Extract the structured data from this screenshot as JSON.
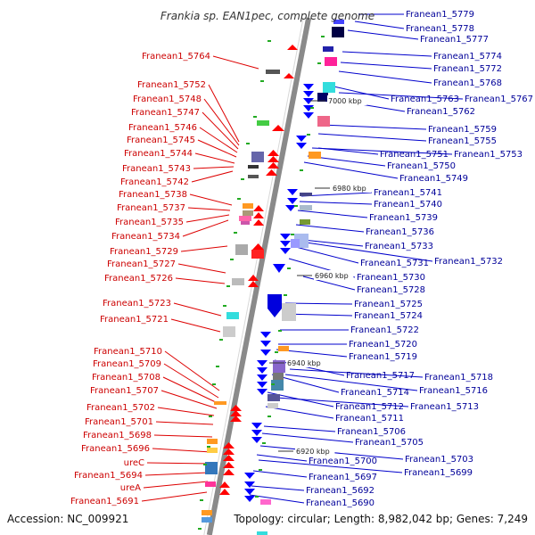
{
  "title": "Frankia sp. EAN1pec, complete genome",
  "footer": {
    "accession": "Accession: NC_009921",
    "stats": "Topology: circular; Length: 8,982,042 bp; Genes: 7,249"
  },
  "colors": {
    "left_label": "#cc0000",
    "right_label": "#000099",
    "axis": "#888888"
  },
  "kbp_markers": [
    "7000 kbp",
    "6980 kbp",
    "6960 kbp",
    "6940 kbp",
    "6920 kbp"
  ],
  "left_labels": [
    "Franean1_5764",
    "Franean1_5752",
    "Franean1_5748",
    "Franean1_5747",
    "Franean1_5746",
    "Franean1_5745",
    "Franean1_5744",
    "Franean1_5743",
    "Franean1_5742",
    "Franean1_5738",
    "Franean1_5737",
    "Franean1_5735",
    "Franean1_5734",
    "Franean1_5729",
    "Franean1_5727",
    "Franean1_5726",
    "Franean1_5723",
    "Franean1_5721",
    "Franean1_5710",
    "Franean1_5709",
    "Franean1_5708",
    "Franean1_5707",
    "Franean1_5702",
    "Franean1_5701",
    "Franean1_5698",
    "Franean1_5696",
    "ureC",
    "Franean1_5694",
    "ureA",
    "Franean1_5691"
  ],
  "right_labels": [
    "Franean1_5779",
    "Franean1_5778",
    "Franean1_5777",
    "Franean1_5774",
    "Franean1_5772",
    "Franean1_5768",
    "Franean1_5763",
    "Franean1_5767",
    "Franean1_5762",
    "Franean1_5759",
    "Franean1_5755",
    "Franean1_5751",
    "Franean1_5753",
    "Franean1_5750",
    "Franean1_5749",
    "Franean1_5741",
    "Franean1_5740",
    "Franean1_5739",
    "Franean1_5736",
    "Franean1_5733",
    "Franean1_5731",
    "Franean1_5732",
    "Franean1_5730",
    "Franean1_5728",
    "Franean1_5725",
    "Franean1_5724",
    "Franean1_5722",
    "Franean1_5720",
    "Franean1_5719",
    "Franean1_5717",
    "Franean1_5718",
    "Franean1_5714",
    "Franean1_5716",
    "Franean1_5712",
    "Franean1_5713",
    "Franean1_5711",
    "Franean1_5706",
    "Franean1_5705",
    "Franean1_5700",
    "Franean1_5703",
    "Franean1_5697",
    "Franean1_5699",
    "Franean1_5692",
    "Franean1_5690"
  ]
}
